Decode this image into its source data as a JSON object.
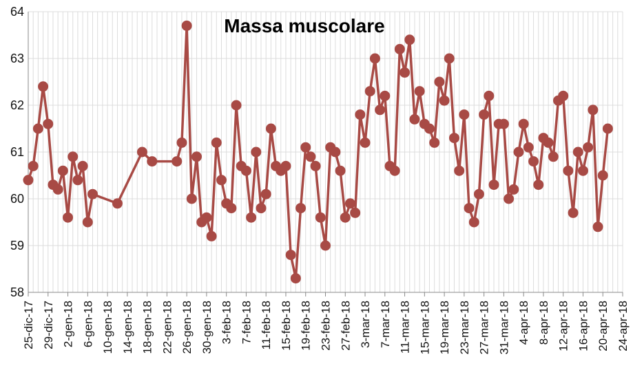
{
  "chart_data": {
    "type": "line",
    "title": "Massa muscolare",
    "xlabel": "",
    "ylabel": "",
    "ylim": [
      58,
      64
    ],
    "yticks": [
      58,
      59,
      60,
      61,
      62,
      63,
      64
    ],
    "grid": true,
    "series_color": "#a84a45",
    "x_tick_labels": [
      "25-dic-17",
      "29-dic-17",
      "2-gen-18",
      "6-gen-18",
      "10-gen-18",
      "14-gen-18",
      "18-gen-18",
      "22-gen-18",
      "26-gen-18",
      "30-gen-18",
      "3-feb-18",
      "7-feb-18",
      "11-feb-18",
      "15-feb-18",
      "19-feb-18",
      "23-feb-18",
      "27-feb-18",
      "3-mar-18",
      "7-mar-18",
      "11-mar-18",
      "15-mar-18",
      "19-mar-18",
      "23-mar-18",
      "27-mar-18",
      "31-mar-18",
      "4-apr-18",
      "8-apr-18",
      "12-apr-18",
      "16-apr-18",
      "20-apr-18",
      "24-apr-18"
    ],
    "series": [
      {
        "name": "Massa muscolare",
        "points": [
          [
            0,
            60.4
          ],
          [
            1,
            60.7
          ],
          [
            2,
            61.5
          ],
          [
            3,
            62.4
          ],
          [
            4,
            61.6
          ],
          [
            5,
            60.3
          ],
          [
            6,
            60.2
          ],
          [
            7,
            60.6
          ],
          [
            8,
            59.6
          ],
          [
            9,
            60.9
          ],
          [
            10,
            60.4
          ],
          [
            11,
            60.7
          ],
          [
            12,
            59.5
          ],
          [
            13,
            60.1
          ],
          [
            18,
            59.9
          ],
          [
            23,
            61.0
          ],
          [
            25,
            60.8
          ],
          [
            30,
            60.8
          ],
          [
            31,
            61.2
          ],
          [
            32,
            63.7
          ],
          [
            33,
            60.0
          ],
          [
            34,
            60.9
          ],
          [
            35,
            59.5
          ],
          [
            36,
            59.6
          ],
          [
            37,
            59.2
          ],
          [
            38,
            61.2
          ],
          [
            39,
            60.4
          ],
          [
            40,
            59.9
          ],
          [
            41,
            59.8
          ],
          [
            42,
            62.0
          ],
          [
            43,
            60.7
          ],
          [
            44,
            60.6
          ],
          [
            45,
            59.6
          ],
          [
            46,
            61.0
          ],
          [
            47,
            59.8
          ],
          [
            48,
            60.1
          ],
          [
            49,
            61.5
          ],
          [
            50,
            60.7
          ],
          [
            51,
            60.6
          ],
          [
            52,
            60.7
          ],
          [
            53,
            58.8
          ],
          [
            54,
            58.3
          ],
          [
            55,
            59.8
          ],
          [
            56,
            61.1
          ],
          [
            57,
            60.9
          ],
          [
            58,
            60.7
          ],
          [
            59,
            59.6
          ],
          [
            60,
            59.0
          ],
          [
            61,
            61.1
          ],
          [
            62,
            61.0
          ],
          [
            63,
            60.6
          ],
          [
            64,
            59.6
          ],
          [
            65,
            59.9
          ],
          [
            66,
            59.7
          ],
          [
            67,
            61.8
          ],
          [
            68,
            61.2
          ],
          [
            69,
            62.3
          ],
          [
            70,
            63.0
          ],
          [
            71,
            61.9
          ],
          [
            72,
            62.2
          ],
          [
            73,
            60.7
          ],
          [
            74,
            60.6
          ],
          [
            75,
            63.2
          ],
          [
            76,
            62.7
          ],
          [
            77,
            63.4
          ],
          [
            78,
            61.7
          ],
          [
            79,
            62.3
          ],
          [
            80,
            61.6
          ],
          [
            81,
            61.5
          ],
          [
            82,
            61.2
          ],
          [
            83,
            62.5
          ],
          [
            84,
            62.1
          ],
          [
            85,
            63.0
          ],
          [
            86,
            61.3
          ],
          [
            87,
            60.6
          ],
          [
            88,
            61.8
          ],
          [
            89,
            59.8
          ],
          [
            90,
            59.5
          ],
          [
            91,
            60.1
          ],
          [
            92,
            61.8
          ],
          [
            93,
            62.2
          ],
          [
            94,
            60.3
          ],
          [
            95,
            61.6
          ],
          [
            96,
            61.6
          ],
          [
            97,
            60.0
          ],
          [
            98,
            60.2
          ],
          [
            99,
            61.0
          ],
          [
            100,
            61.6
          ],
          [
            101,
            61.1
          ],
          [
            102,
            60.8
          ],
          [
            103,
            60.3
          ],
          [
            104,
            61.3
          ],
          [
            105,
            61.2
          ],
          [
            106,
            60.9
          ],
          [
            107,
            62.1
          ],
          [
            108,
            62.2
          ],
          [
            109,
            60.6
          ],
          [
            110,
            59.7
          ],
          [
            111,
            61.0
          ],
          [
            112,
            60.6
          ],
          [
            113,
            61.1
          ],
          [
            114,
            61.9
          ],
          [
            115,
            59.4
          ],
          [
            116,
            60.5
          ],
          [
            117,
            61.5
          ]
        ]
      }
    ]
  }
}
